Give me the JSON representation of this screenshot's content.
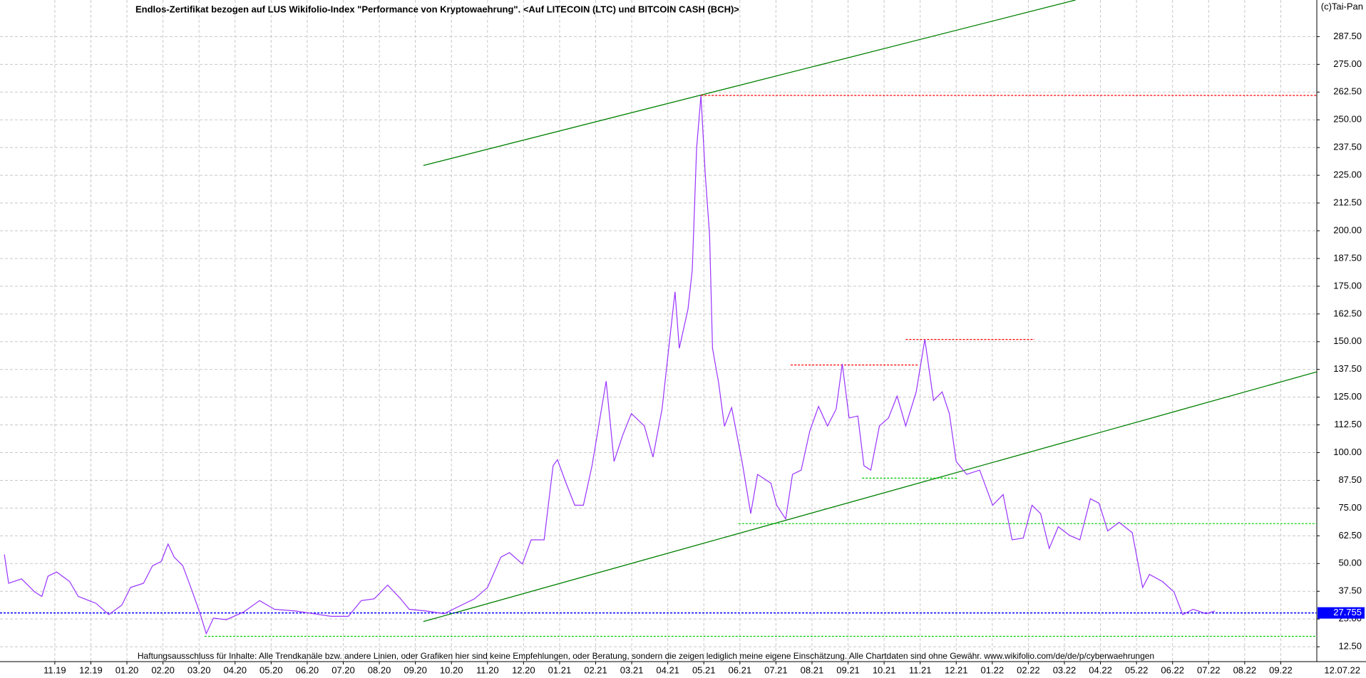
{
  "chart_data": {
    "type": "line",
    "title": "Endlos-Zertifikat bezogen auf LUS Wikifolio-Index \"Performance von Kryptowaehrung\". <Auf LITECOIN (LTC) und BITCOIN CASH (BCH)>",
    "copyright": "(c)Tai-Pan",
    "footer": "Haftungsausschluss für Inhalte: Alle Trendkanäle bzw. andere Linien, oder Grafiken hier sind keine Empfehlungen, oder Beratung, sondern die zeigen lediglich meine eigene Einschätzung. Alle Chartdaten sind ohne Gewähr.  www.wikifolio.com/de/de/p/cyberwaehrungen",
    "date_label": "12.07.22",
    "grid": true,
    "xlim": [
      -1.52,
      35.0
    ],
    "ylim": [
      5.8,
      304
    ],
    "xticks": [
      {
        "value": 0,
        "label": "11.19"
      },
      {
        "value": 1,
        "label": "12.19"
      },
      {
        "value": 2,
        "label": "01.20"
      },
      {
        "value": 3,
        "label": "02.20"
      },
      {
        "value": 4,
        "label": "03.20"
      },
      {
        "value": 5,
        "label": "04.20"
      },
      {
        "value": 6,
        "label": "05.20"
      },
      {
        "value": 7,
        "label": "06.20"
      },
      {
        "value": 8,
        "label": "07.20"
      },
      {
        "value": 9,
        "label": "08.20"
      },
      {
        "value": 10,
        "label": "09.20"
      },
      {
        "value": 11,
        "label": "10.20"
      },
      {
        "value": 12,
        "label": "11.20"
      },
      {
        "value": 13,
        "label": "12.20"
      },
      {
        "value": 14,
        "label": "01.21"
      },
      {
        "value": 15,
        "label": "02.21"
      },
      {
        "value": 16,
        "label": "03.21"
      },
      {
        "value": 17,
        "label": "04.21"
      },
      {
        "value": 18,
        "label": "05.21"
      },
      {
        "value": 19,
        "label": "06.21"
      },
      {
        "value": 20,
        "label": "07.21"
      },
      {
        "value": 21,
        "label": "08.21"
      },
      {
        "value": 22,
        "label": "09.21"
      },
      {
        "value": 23,
        "label": "10.21"
      },
      {
        "value": 24,
        "label": "11.21"
      },
      {
        "value": 25,
        "label": "12.21"
      },
      {
        "value": 26,
        "label": "01.22"
      },
      {
        "value": 27,
        "label": "02.22"
      },
      {
        "value": 28,
        "label": "03.22"
      },
      {
        "value": 29,
        "label": "04.22"
      },
      {
        "value": 30,
        "label": "05.22"
      },
      {
        "value": 31,
        "label": "06.22"
      },
      {
        "value": 32,
        "label": "07.22"
      },
      {
        "value": 33,
        "label": "08.22"
      },
      {
        "value": 34,
        "label": "09.22"
      }
    ],
    "yticks": [
      {
        "value": 12.5,
        "label": "12.50"
      },
      {
        "value": 25,
        "label": "25.00"
      },
      {
        "value": 37.5,
        "label": "37.50"
      },
      {
        "value": 50,
        "label": "50.00"
      },
      {
        "value": 62.5,
        "label": "62.50"
      },
      {
        "value": 75,
        "label": "75.00"
      },
      {
        "value": 87.5,
        "label": "87.50"
      },
      {
        "value": 100,
        "label": "100.00"
      },
      {
        "value": 112.5,
        "label": "112.50"
      },
      {
        "value": 125,
        "label": "125.00"
      },
      {
        "value": 137.5,
        "label": "137.50"
      },
      {
        "value": 150,
        "label": "150.00"
      },
      {
        "value": 162.5,
        "label": "162.50"
      },
      {
        "value": 175,
        "label": "175.00"
      },
      {
        "value": 187.5,
        "label": "187.50"
      },
      {
        "value": 200,
        "label": "200.00"
      },
      {
        "value": 212.5,
        "label": "212.50"
      },
      {
        "value": 225,
        "label": "225.00"
      },
      {
        "value": 237.5,
        "label": "237.50"
      },
      {
        "value": 250,
        "label": "250.00"
      },
      {
        "value": 262.5,
        "label": "262.50"
      },
      {
        "value": 275,
        "label": "275.00"
      },
      {
        "value": 287.5,
        "label": "287.50"
      }
    ],
    "series": [
      {
        "color": "#9933ff",
        "x": [
          -1.4,
          -1.28,
          -0.92,
          -0.56,
          -0.36,
          -0.19,
          0.05,
          0.41,
          0.65,
          1.14,
          1.5,
          1.86,
          2.1,
          2.46,
          2.71,
          2.95,
          3.14,
          3.31,
          3.55,
          3.79,
          4.03,
          4.2,
          4.4,
          4.76,
          5.24,
          5.68,
          6.09,
          6.69,
          7.17,
          7.66,
          8.14,
          8.5,
          8.86,
          9.23,
          9.59,
          9.83,
          10.31,
          10.8,
          11.28,
          11.64,
          12.0,
          12.37,
          12.61,
          12.97,
          13.21,
          13.57,
          13.82,
          13.94,
          14.18,
          14.42,
          14.66,
          14.9,
          15.14,
          15.29,
          15.51,
          15.75,
          15.99,
          16.35,
          16.59,
          16.84,
          17.08,
          17.2,
          17.32,
          17.56,
          17.68,
          17.8,
          17.92,
          18.04,
          18.16,
          18.24,
          18.41,
          18.57,
          18.77,
          19.06,
          19.3,
          19.49,
          19.86,
          20.02,
          20.27,
          20.46,
          20.7,
          20.94,
          21.18,
          21.43,
          21.67,
          21.84,
          22.03,
          22.27,
          22.44,
          22.63,
          22.87,
          23.12,
          23.36,
          23.6,
          23.89,
          24.13,
          24.37,
          24.61,
          24.81,
          25.0,
          25.29,
          25.65,
          26.01,
          26.3,
          26.55,
          26.86,
          27.1,
          27.34,
          27.58,
          27.83,
          28.14,
          28.43,
          28.72,
          28.96,
          29.2,
          29.52,
          29.88,
          30.17,
          30.36,
          30.72,
          31.04,
          31.28,
          31.57,
          31.93,
          32.17
        ],
        "values": [
          54.1,
          41.1,
          43.1,
          37.2,
          35.2,
          44.3,
          46.2,
          41.9,
          35.2,
          32.1,
          27.0,
          31.3,
          39.2,
          41.1,
          49.0,
          50.9,
          58.8,
          52.9,
          49.0,
          38.4,
          27.4,
          18.4,
          25.4,
          24.7,
          28.2,
          33.3,
          29.4,
          28.6,
          27.4,
          26.2,
          26.2,
          33.3,
          34.1,
          40.3,
          34.1,
          29.4,
          28.6,
          27.4,
          31.3,
          34.1,
          39.2,
          52.9,
          54.9,
          49.8,
          60.7,
          60.7,
          94.1,
          96.8,
          86.2,
          76.3,
          76.3,
          94.1,
          117.6,
          132.2,
          96.0,
          107.8,
          117.6,
          112.0,
          98.0,
          119.6,
          154.9,
          172.5,
          147.0,
          164.7,
          182.4,
          237.3,
          261.0,
          225.5,
          198.0,
          147.0,
          131.4,
          111.9,
          120.3,
          96.0,
          72.5,
          90.2,
          86.2,
          76.3,
          70.1,
          90.2,
          92.1,
          109.8,
          120.8,
          112.0,
          119.6,
          140.0,
          115.6,
          116.5,
          94.1,
          92.1,
          112.0,
          115.6,
          125.5,
          112.0,
          127.4,
          151.0,
          123.5,
          127.4,
          117.6,
          96.0,
          90.2,
          92.1,
          76.3,
          81.1,
          60.7,
          61.5,
          76.3,
          72.5,
          56.8,
          66.6,
          62.7,
          60.7,
          79.2,
          77.2,
          64.7,
          68.6,
          63.9,
          39.2,
          45.1,
          41.9,
          37.2,
          27.0,
          29.4,
          27.4,
          28.6
        ]
      }
    ],
    "last_price": {
      "value": 27.755,
      "color": "#0000ff"
    },
    "lines": [
      {
        "color": "#008000",
        "style": "solid",
        "x": [
          10.22,
          28.31
        ],
        "values": [
          229.4,
          304
        ]
      },
      {
        "color": "#008000",
        "style": "solid",
        "x": [
          10.22,
          35.0
        ],
        "values": [
          23.85,
          136.4
        ]
      },
      {
        "color": "#ff0000",
        "style": "dotted",
        "x": [
          17.92,
          35.0
        ],
        "values": [
          261,
          261
        ]
      },
      {
        "color": "#ff0000",
        "style": "dotted",
        "x": [
          20.41,
          23.96
        ],
        "values": [
          139.5,
          139.5
        ]
      },
      {
        "color": "#ff0000",
        "style": "dotted",
        "x": [
          23.6,
          27.17
        ],
        "values": [
          151,
          151
        ]
      },
      {
        "color": "#00cc00",
        "style": "dotted",
        "x": [
          22.39,
          25.05
        ],
        "values": [
          88.5,
          88.5
        ]
      },
      {
        "color": "#00cc00",
        "style": "dotted",
        "x": [
          18.96,
          35.0
        ],
        "values": [
          68,
          68
        ]
      },
      {
        "color": "#00cc00",
        "style": "dotted",
        "x": [
          4.15,
          35.0
        ],
        "values": [
          17.2,
          17.2
        ]
      }
    ]
  }
}
